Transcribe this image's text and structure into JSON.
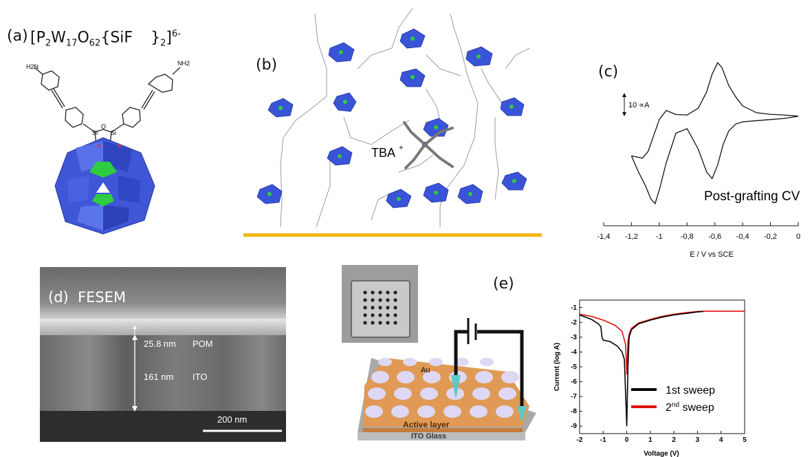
{
  "panel_a": {
    "label": "(a)",
    "formula_main": "[P",
    "formula_sub1": "2",
    "formula_w": "W",
    "formula_sub2": "17",
    "formula_o": "O",
    "formula_sub3": "62",
    "formula_sif": "{SiF",
    "formula_close": "}",
    "formula_sub4": "2",
    "formula_close2": "]",
    "formula_sup": "6-",
    "nh2_left": "H2N",
    "nh2_right": "NH2",
    "si_left": "Si",
    "o": "O",
    "si_right": "Si"
  },
  "panel_b": {
    "label": "(b)",
    "tba": "TBA",
    "tba_sup": "+"
  },
  "panel_c": {
    "label": "(c)",
    "scale": "10 ∝A",
    "legend": "Post-grafting CV",
    "xlabel": "E / V vs SCE"
  },
  "panel_d": {
    "label": "(d)  FESEM",
    "pom_thick": "25.8 nm",
    "pom": "POM",
    "ito_thick": "161 nm",
    "ito": "ITO",
    "scale": "200 nm"
  },
  "panel_e": {
    "label": "(e)",
    "au": "Au",
    "active": "Active layer",
    "ito_glass": "ITO Glass"
  },
  "colors": {
    "pom_blue": "#3a54d8",
    "green": "#2ecc40",
    "substrate": "#f2b50f",
    "sweep1": "#000000",
    "sweep2": "#e01010",
    "device_orange": "#e09a55"
  },
  "chart_data": [
    {
      "type": "line",
      "title": "Post-grafting CV",
      "xlabel": "E / V vs SCE",
      "ylabel": "",
      "xlim": [
        -1.4,
        0
      ],
      "xticks": [
        "-1,4",
        "-1,2",
        "-1",
        "-0,8",
        "-0,6",
        "-0,4",
        "-0,2",
        "0"
      ],
      "scale_bar": "10 ∝A",
      "series": [
        {
          "name": "",
          "x": [
            0,
            -0.1,
            -0.2,
            -0.3,
            -0.4,
            -0.45,
            -0.5,
            -0.55,
            -0.58,
            -0.62,
            -0.66,
            -0.72,
            -0.8,
            -0.88,
            -0.95,
            -1.0,
            -1.04,
            -1.08,
            -1.12,
            -1.2
          ],
          "y": [
            12.5,
            13,
            13.3,
            14,
            17,
            21,
            26,
            34,
            36,
            31,
            23,
            16,
            13,
            13.2,
            15,
            11,
            4,
            -3,
            -6,
            -5
          ]
        },
        {
          "name": "",
          "x": [
            -1.2,
            -1.15,
            -1.1,
            -1.06,
            -1.03,
            -1.0,
            -0.95,
            -0.88,
            -0.8,
            -0.72,
            -0.66,
            -0.62,
            -0.58,
            -0.54,
            -0.5,
            -0.45,
            -0.4,
            -0.3,
            -0.2,
            -0.1,
            0
          ],
          "y": [
            -5,
            -12,
            -18,
            -24,
            -26,
            -20,
            -8,
            5,
            7,
            -2,
            -12,
            -15,
            -9,
            0,
            6,
            9,
            10,
            10.5,
            11,
            11.5,
            12.5
          ]
        }
      ]
    },
    {
      "type": "line",
      "title": "",
      "xlabel": "Voltage (V)",
      "ylabel": "Current (log A)",
      "xlim": [
        -2,
        5
      ],
      "ylim": [
        -9.5,
        -0.5
      ],
      "xticks": [
        "-2",
        "-1",
        "0",
        "1",
        "2",
        "3",
        "4",
        "5"
      ],
      "yticks": [
        "-1",
        "-2",
        "-3",
        "-4",
        "-5",
        "-6",
        "-7",
        "-8",
        "-9"
      ],
      "series": [
        {
          "name": "1st sweep",
          "x": [
            -2,
            -1.5,
            -1.2,
            -1.1,
            -1.05,
            -1.0,
            -0.7,
            -0.4,
            -0.2,
            -0.1,
            0,
            0.05,
            0.1,
            0.2,
            0.5,
            1,
            1.5,
            2,
            2.5,
            3,
            3.25
          ],
          "y": [
            -1.5,
            -1.8,
            -2.1,
            -2.3,
            -3.0,
            -3.2,
            -3.3,
            -3.6,
            -4.0,
            -4.5,
            -9.0,
            -5.0,
            -3.0,
            -2.5,
            -2.1,
            -1.85,
            -1.65,
            -1.5,
            -1.4,
            -1.3,
            -1.27
          ]
        },
        {
          "name": "2nd sweep",
          "x": [
            -2,
            -1.5,
            -1,
            -0.5,
            -0.2,
            -0.05,
            0,
            0.05,
            0.1,
            0.2,
            0.5,
            1,
            1.5,
            2,
            2.5,
            3,
            3.25,
            4,
            5
          ],
          "y": [
            -1.45,
            -1.6,
            -1.85,
            -2.2,
            -2.6,
            -3.5,
            -5.5,
            -3.3,
            -2.8,
            -2.4,
            -2.05,
            -1.8,
            -1.6,
            -1.45,
            -1.35,
            -1.27,
            -1.25,
            -1.25,
            -1.25
          ]
        }
      ]
    }
  ]
}
